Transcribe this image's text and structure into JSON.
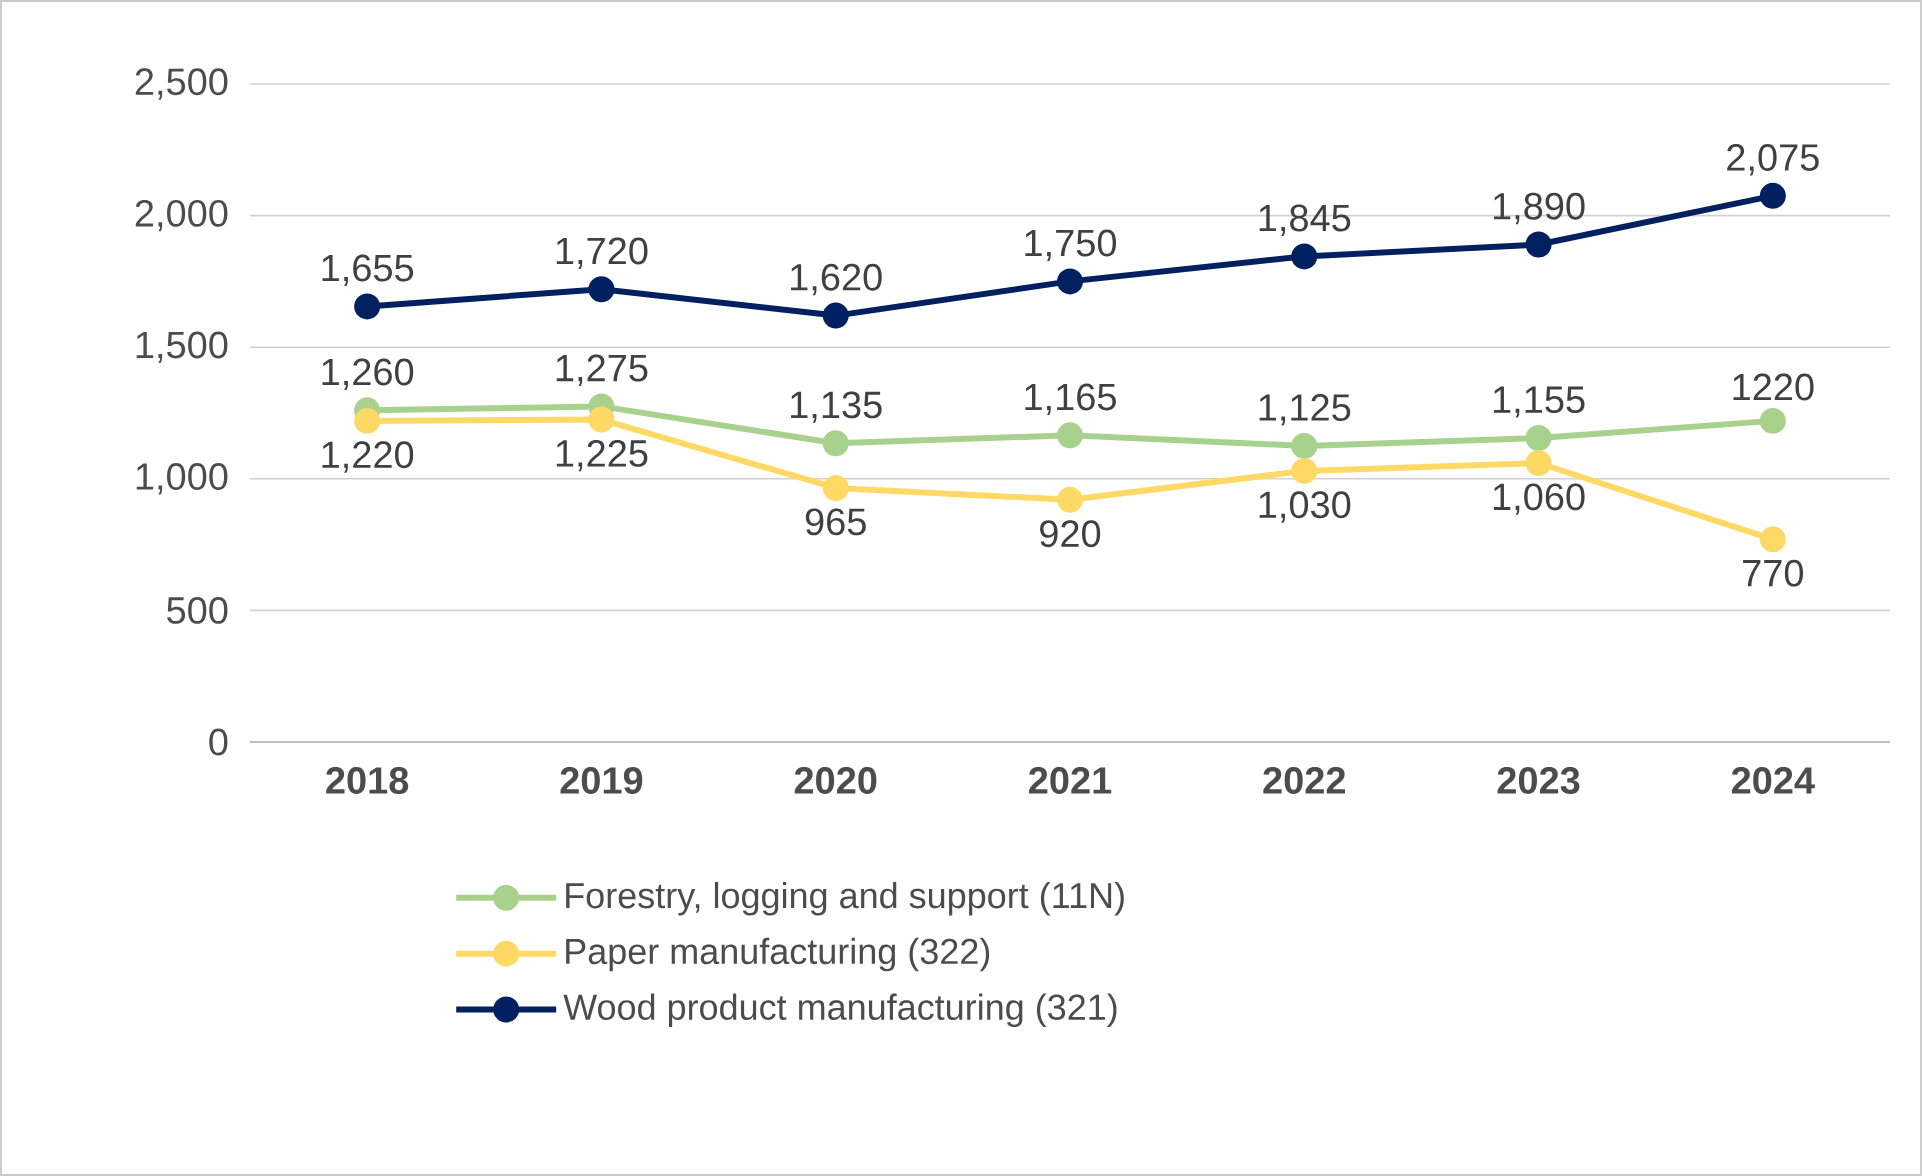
{
  "chart_data": {
    "type": "line",
    "categories": [
      "2018",
      "2019",
      "2020",
      "2021",
      "2022",
      "2023",
      "2024"
    ],
    "series": [
      {
        "name": "Forestry, logging and support  (11N)",
        "color": "#a9d18e",
        "values": [
          1260,
          1275,
          1135,
          1165,
          1125,
          1155,
          1220
        ],
        "value_labels": [
          "1,260",
          "1,275",
          "1,135",
          "1,165",
          "1,125",
          "1,155",
          "1220"
        ]
      },
      {
        "name": "Paper manufacturing  (322)",
        "color": "#ffd966",
        "values": [
          1220,
          1225,
          965,
          920,
          1030,
          1060,
          770
        ],
        "value_labels": [
          "1,220",
          "1,225",
          "965",
          "920",
          "1,030",
          "1,060",
          "770"
        ]
      },
      {
        "name": "Wood product manufacturing  (321)",
        "color": "#002060",
        "values": [
          1655,
          1720,
          1620,
          1750,
          1845,
          1890,
          2075
        ],
        "value_labels": [
          "1,655",
          "1,720",
          "1,620",
          "1,750",
          "1,845",
          "1,890",
          "2,075"
        ]
      }
    ],
    "ylim": [
      0,
      2500
    ],
    "yticks": [
      0,
      500,
      {
        "value": 1000,
        "label": "1,000"
      },
      {
        "value": 1500,
        "label": "1,500"
      },
      {
        "value": 2000,
        "label": "2,000"
      },
      {
        "value": 2500,
        "label": "2,500"
      }
    ],
    "grid": "y",
    "legend": "bottom",
    "marker": "circle",
    "line_style": "solid"
  }
}
